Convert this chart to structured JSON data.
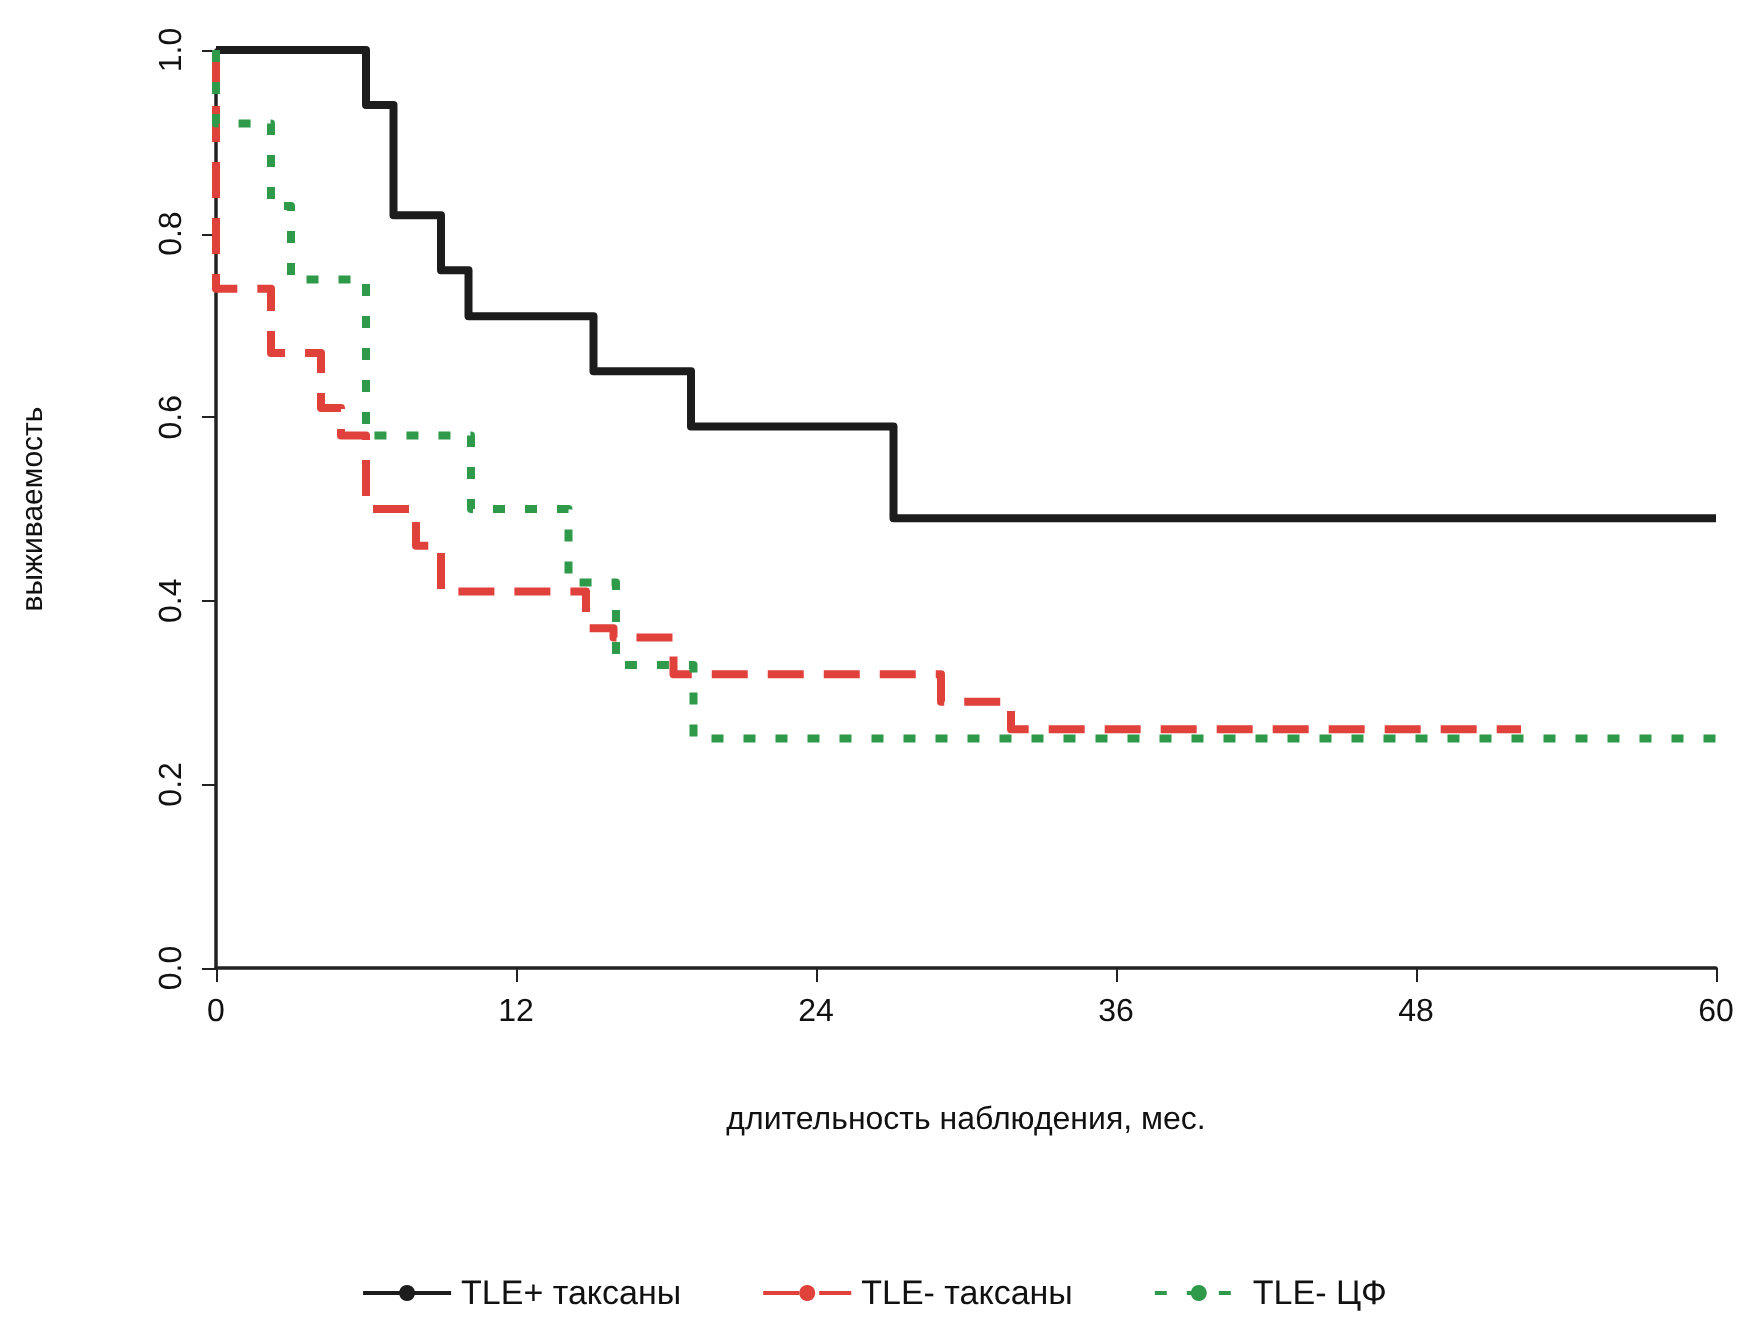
{
  "chart_data": {
    "type": "step",
    "xlabel": "длительность наблюдения, мес.",
    "ylabel": "выживаемость",
    "xlim": [
      0,
      60
    ],
    "xticks": [
      0,
      12,
      24,
      36,
      48,
      60
    ],
    "ylim": [
      0,
      1
    ],
    "yticks": [
      {
        "value": 0,
        "label": "0.0"
      },
      0.2,
      0.4,
      0.6,
      0.8,
      {
        "value": 1,
        "label": "1.0"
      }
    ],
    "grid": false,
    "legend": "bottom",
    "series": [
      {
        "name": "TLE+ таксаны",
        "color": "#1c1c1c",
        "line_style": "solid",
        "x": [
          0,
          6.0,
          7.1,
          9.0,
          10.1,
          15.1,
          19.0,
          27.1,
          60
        ],
        "values": [
          1,
          0.94,
          0.82,
          0.76,
          0.71,
          0.65,
          0.59,
          0.49,
          0.49
        ]
      },
      {
        "name": "TLE- таксаны",
        "color": "#e0413a",
        "line_style": "dashed",
        "x": [
          0,
          0,
          2.2,
          4.2,
          5.0,
          6.0,
          8.0,
          9.0,
          14.8,
          15.9,
          18.3,
          29.0,
          31.8,
          52.2
        ],
        "values": [
          1,
          0.74,
          0.67,
          0.61,
          0.58,
          0.5,
          0.46,
          0.41,
          0.37,
          0.36,
          0.32,
          0.29,
          0.26,
          0.26
        ]
      },
      {
        "name": "TLE- ЦФ",
        "color": "#2f9a4a",
        "line_style": "dotted",
        "x": [
          0,
          0,
          2.2,
          3.0,
          6.0,
          10.2,
          14.1,
          16.0,
          19.1,
          60
        ],
        "values": [
          1,
          0.92,
          0.83,
          0.75,
          0.58,
          0.5,
          0.42,
          0.33,
          0.25,
          0.25
        ]
      }
    ]
  }
}
